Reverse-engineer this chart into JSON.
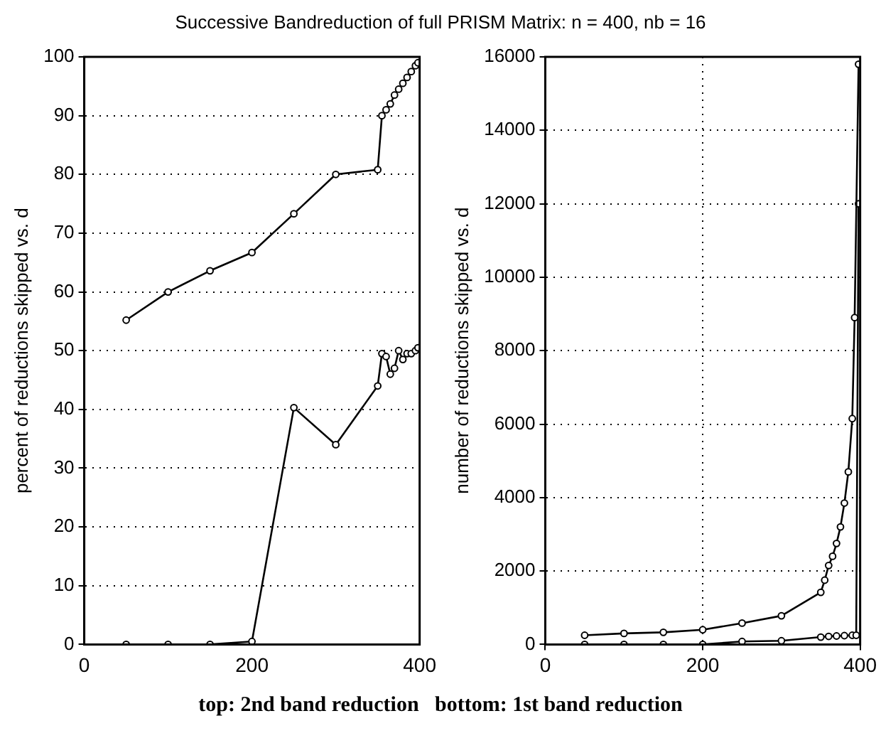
{
  "chart_data": [
    {
      "type": "line",
      "title": "Successive Bandreduction of full PRISM Matrix: n = 400, nb = 16",
      "ylabel": "percent of reductions skipped vs. d",
      "annotations": [
        "top: 2nd band reduction   bottom: 1st band reduction"
      ],
      "xlim": [
        0,
        400
      ],
      "xticks": [
        0,
        200,
        400
      ],
      "ylim": [
        0,
        100
      ],
      "yticks": [
        0,
        10,
        20,
        30,
        40,
        50,
        60,
        70,
        80,
        90,
        100
      ],
      "grid": "y",
      "legend": false,
      "marker": "circle",
      "line_style": "solid",
      "series": [
        {
          "color": "#000000",
          "x": [
            50,
            100,
            150,
            200,
            250,
            300,
            350,
            355,
            360,
            365,
            370,
            375,
            380,
            385,
            390,
            395,
            398
          ],
          "values": [
            55.2,
            60,
            63.6,
            66.7,
            73.3,
            80,
            80.8,
            90,
            91,
            92,
            93.5,
            94.5,
            95.5,
            96.5,
            97.5,
            98.5,
            99
          ]
        },
        {
          "color": "#000000",
          "x": [
            50,
            100,
            150,
            200,
            250,
            300,
            350,
            355,
            360,
            365,
            370,
            375,
            380,
            385,
            390,
            395,
            398
          ],
          "values": [
            0,
            0,
            0,
            0.5,
            40.3,
            34,
            44,
            49.5,
            49,
            46,
            47,
            50,
            48.5,
            49.5,
            49.5,
            50,
            50.5
          ]
        }
      ]
    },
    {
      "type": "line",
      "ylabel": "number of reductions skipped vs. d",
      "xlim": [
        0,
        400
      ],
      "xticks": [
        0,
        200,
        400
      ],
      "ylim": [
        0,
        16000
      ],
      "yticks": [
        0,
        2000,
        4000,
        6000,
        8000,
        10000,
        12000,
        14000,
        16000
      ],
      "grid": true,
      "legend": false,
      "marker": "circle",
      "line_style": "solid",
      "series": [
        {
          "color": "#000000",
          "x": [
            50,
            100,
            150,
            200,
            250,
            300,
            350,
            355,
            360,
            365,
            370,
            375,
            380,
            385,
            390,
            393,
            398
          ],
          "values": [
            250,
            300,
            330,
            400,
            580,
            780,
            1420,
            1750,
            2150,
            2400,
            2750,
            3200,
            3850,
            4700,
            6150,
            8900,
            15800
          ]
        },
        {
          "color": "#000000",
          "x": [
            50,
            100,
            150,
            200,
            250,
            300,
            350,
            360,
            370,
            380,
            390,
            395,
            398
          ],
          "values": [
            0,
            0,
            0,
            0,
            80,
            100,
            200,
            220,
            230,
            240,
            250,
            250,
            12000
          ]
        }
      ]
    }
  ]
}
